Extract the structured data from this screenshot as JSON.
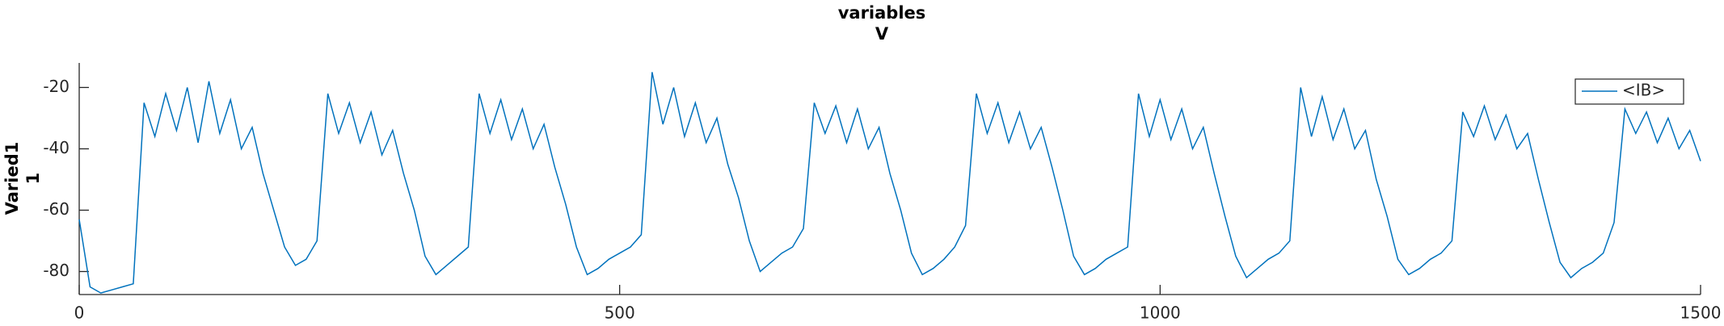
{
  "chart_data": {
    "type": "line",
    "title": "variables",
    "subtitle": "V",
    "ylabel": [
      "Varied1",
      "1"
    ],
    "x": [
      0,
      10,
      20,
      30,
      40,
      50,
      60,
      70,
      80,
      90,
      100,
      110,
      120,
      130,
      140,
      150,
      160,
      170,
      180,
      190,
      200,
      210,
      220,
      230,
      240,
      250,
      260,
      270,
      280,
      290,
      300,
      310,
      320,
      330,
      340,
      350,
      360,
      370,
      380,
      390,
      400,
      410,
      420,
      430,
      440,
      450,
      460,
      470,
      480,
      490,
      500,
      510,
      520,
      530,
      540,
      550,
      560,
      570,
      580,
      590,
      600,
      610,
      620,
      630,
      640,
      650,
      660,
      670,
      680,
      690,
      700,
      710,
      720,
      730,
      740,
      750,
      760,
      770,
      780,
      790,
      800,
      810,
      820,
      830,
      840,
      850,
      860,
      870,
      880,
      890,
      900,
      910,
      920,
      930,
      940,
      950,
      960,
      970,
      980,
      990,
      1000,
      1010,
      1020,
      1030,
      1040,
      1050,
      1060,
      1070,
      1080,
      1090,
      1100,
      1110,
      1120,
      1130,
      1140,
      1150,
      1160,
      1170,
      1180,
      1190,
      1200,
      1210,
      1220,
      1230,
      1240,
      1250,
      1260,
      1270,
      1280,
      1290,
      1300,
      1310,
      1320,
      1330,
      1340,
      1350,
      1360,
      1370,
      1380,
      1390,
      1400,
      1410,
      1420,
      1430,
      1440,
      1450,
      1460,
      1470,
      1480,
      1490,
      1500
    ],
    "series": [
      {
        "name": "<IB>",
        "color": "#0072bd",
        "values": [
          -63,
          -85,
          -87,
          -86,
          -85,
          -84,
          -25,
          -36,
          -22,
          -34,
          -20,
          -38,
          -18,
          -35,
          -24,
          -40,
          -33,
          -48,
          -60,
          -72,
          -78,
          -76,
          -70,
          -22,
          -35,
          -25,
          -38,
          -28,
          -42,
          -34,
          -48,
          -60,
          -75,
          -81,
          -78,
          -75,
          -72,
          -22,
          -35,
          -24,
          -37,
          -27,
          -40,
          -32,
          -46,
          -58,
          -72,
          -81,
          -79,
          -76,
          -74,
          -72,
          -68,
          -15,
          -32,
          -20,
          -36,
          -25,
          -38,
          -30,
          -45,
          -56,
          -70,
          -80,
          -77,
          -74,
          -72,
          -66,
          -25,
          -35,
          -26,
          -38,
          -27,
          -40,
          -33,
          -48,
          -60,
          -74,
          -81,
          -79,
          -76,
          -72,
          -65,
          -22,
          -35,
          -25,
          -38,
          -28,
          -40,
          -33,
          -46,
          -60,
          -75,
          -81,
          -79,
          -76,
          -74,
          -72,
          -22,
          -36,
          -24,
          -37,
          -27,
          -40,
          -33,
          -48,
          -62,
          -75,
          -82,
          -79,
          -76,
          -74,
          -70,
          -20,
          -36,
          -23,
          -37,
          -27,
          -40,
          -34,
          -50,
          -62,
          -76,
          -81,
          -79,
          -76,
          -74,
          -70,
          -28,
          -36,
          -26,
          -37,
          -29,
          -40,
          -35,
          -50,
          -64,
          -77,
          -82,
          -79,
          -77,
          -74,
          -64,
          -27,
          -35,
          -28,
          -38,
          -30,
          -40,
          -34,
          -44
        ]
      }
    ],
    "xlim": [
      0,
      1500
    ],
    "xticks": [
      0,
      500,
      1000,
      1500
    ],
    "ylim": [
      -87.5,
      -12
    ],
    "yticks": [
      -80,
      -60,
      -40,
      -20
    ],
    "legend": "top-right"
  }
}
